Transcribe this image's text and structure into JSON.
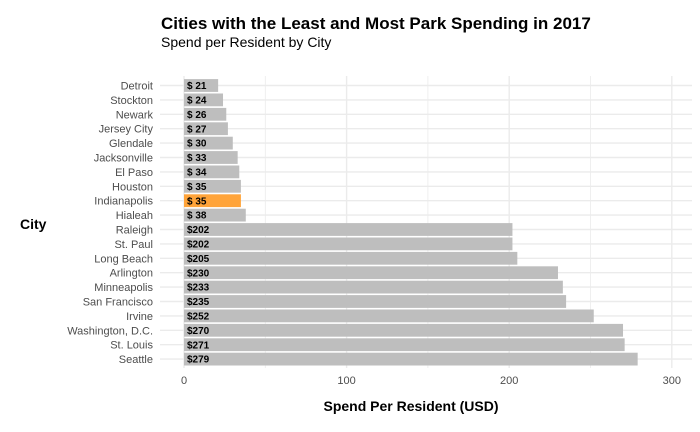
{
  "chart_data": {
    "type": "bar",
    "orientation": "horizontal",
    "title": "Cities with the Least and Most Park Spending in 2017",
    "subtitle": "Spend per Resident by City",
    "xlabel": "Spend Per Resident (USD)",
    "ylabel": "City",
    "xlim": [
      0,
      310
    ],
    "xticks": [
      0,
      100,
      200,
      300
    ],
    "grid": true,
    "categories": [
      "Detroit",
      "Stockton",
      "Newark",
      "Jersey City",
      "Glendale",
      "Jacksonville",
      "El Paso",
      "Houston",
      "Indianapolis",
      "Hialeah",
      "Raleigh",
      "St. Paul",
      "Long Beach",
      "Arlington",
      "Minneapolis",
      "San Francisco",
      "Irvine",
      "Washington, D.C.",
      "St. Louis",
      "Seattle"
    ],
    "values": [
      21,
      24,
      26,
      27,
      30,
      33,
      34,
      35,
      35,
      38,
      202,
      202,
      205,
      230,
      233,
      235,
      252,
      270,
      271,
      279
    ],
    "labels": [
      "$ 21",
      "$ 24",
      "$ 26",
      "$ 27",
      "$ 30",
      "$ 33",
      "$ 34",
      "$ 35",
      "$ 35",
      "$ 38",
      "$202",
      "$202",
      "$205",
      "$230",
      "$233",
      "$235",
      "$252",
      "$270",
      "$271",
      "$279"
    ],
    "highlight": "Indianapolis",
    "colors": {
      "bar": "#bebebe",
      "highlight": "#ffa43a",
      "grid": "#ebebeb"
    }
  }
}
